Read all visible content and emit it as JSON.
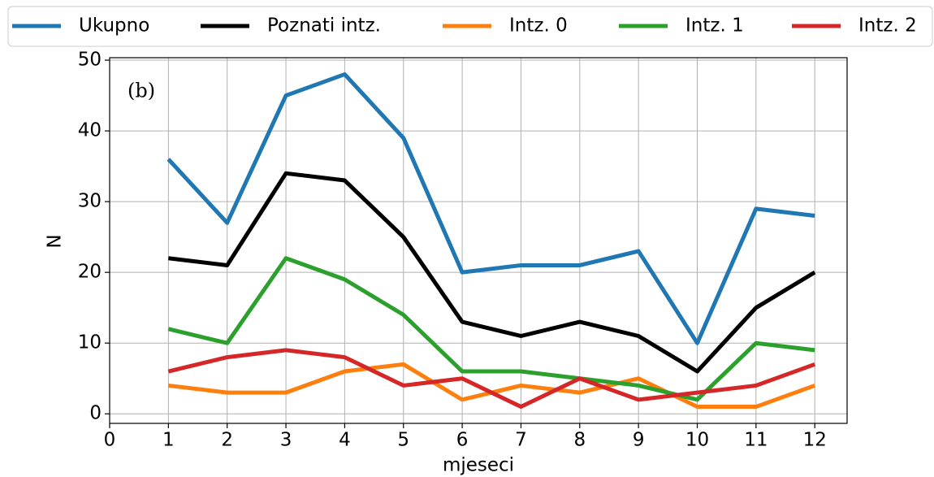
{
  "chart_data": {
    "type": "line",
    "annotation": "(b)",
    "x_label": "mjeseci",
    "y_label": "N",
    "x": [
      1,
      2,
      3,
      4,
      5,
      6,
      7,
      8,
      9,
      10,
      11,
      12
    ],
    "series": [
      {
        "name": "Ukupno",
        "color": "#1f77b4",
        "values": [
          36,
          27,
          45,
          48,
          39,
          20,
          21,
          21,
          23,
          10,
          29,
          28
        ]
      },
      {
        "name": "Poznati intz.",
        "color": "#000000",
        "values": [
          22,
          21,
          34,
          33,
          25,
          13,
          11,
          13,
          11,
          6,
          15,
          20
        ]
      },
      {
        "name": "Intz. 0",
        "color": "#ff7f0e",
        "values": [
          4,
          3,
          3,
          6,
          7,
          2,
          4,
          3,
          5,
          1,
          1,
          4
        ]
      },
      {
        "name": "Intz. 1",
        "color": "#2ca02c",
        "values": [
          12,
          10,
          22,
          19,
          14,
          6,
          6,
          5,
          4,
          2,
          10,
          9
        ]
      },
      {
        "name": "Intz. 2",
        "color": "#d62728",
        "values": [
          6,
          8,
          9,
          8,
          4,
          5,
          1,
          5,
          2,
          3,
          4,
          7
        ]
      }
    ],
    "xlim": [
      0,
      12.55
    ],
    "xticks": [
      0,
      1,
      2,
      3,
      4,
      5,
      6,
      7,
      8,
      9,
      10,
      11,
      12
    ],
    "ylim": [
      -1.35,
      50.35
    ],
    "yticks": [
      0,
      10,
      20,
      30,
      40,
      50
    ],
    "grid": true,
    "legend": "top"
  }
}
